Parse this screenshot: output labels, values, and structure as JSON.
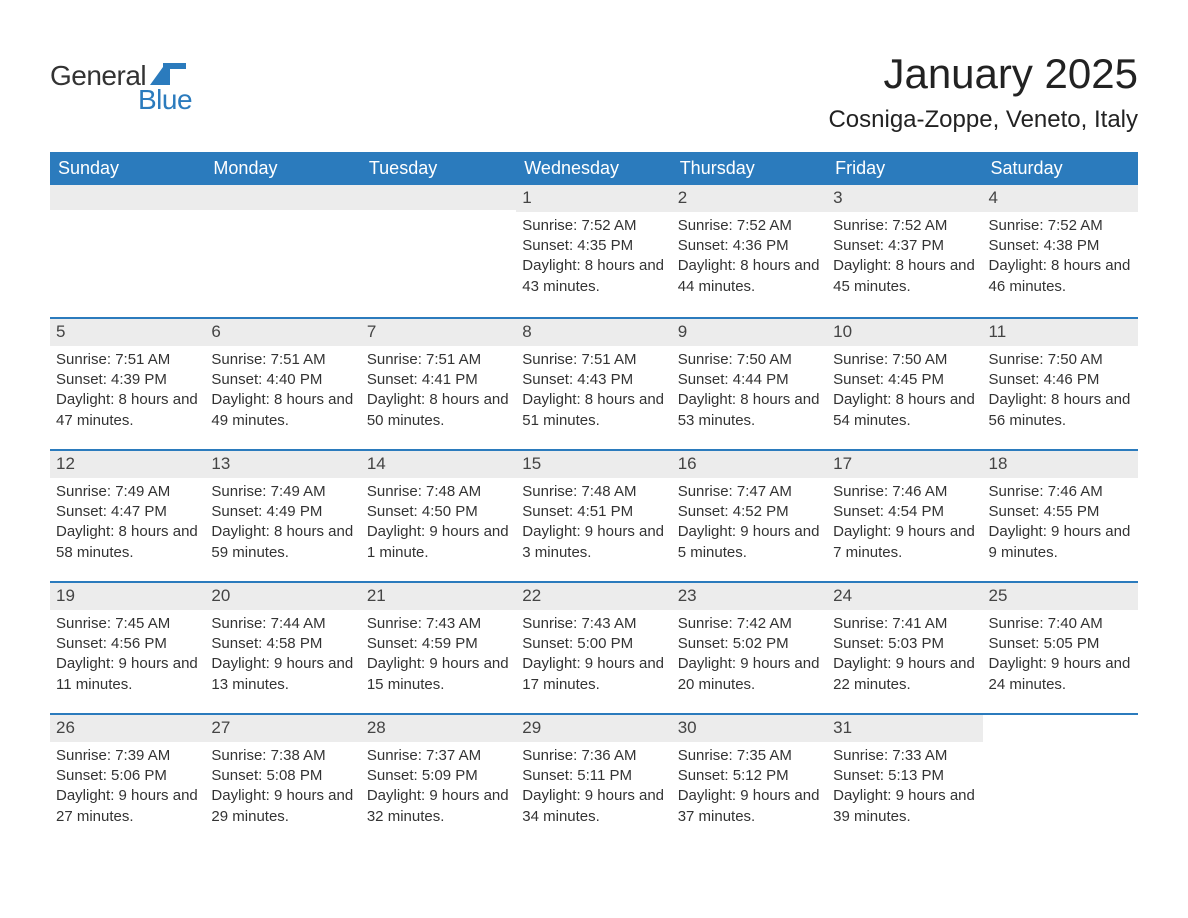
{
  "logo": {
    "text1": "General",
    "text2": "Blue",
    "icon_color": "#2b7bbd"
  },
  "title": "January 2025",
  "location": "Cosniga-Zoppe, Veneto, Italy",
  "colors": {
    "header_bg": "#2b7bbd",
    "header_text": "#ffffff",
    "daynum_bg": "#ececec",
    "text": "#333333",
    "border": "#2b7bbd",
    "page_bg": "#ffffff"
  },
  "fonts": {
    "title_size_pt": 32,
    "location_size_pt": 18,
    "weekday_size_pt": 14,
    "body_size_pt": 11
  },
  "weekdays": [
    "Sunday",
    "Monday",
    "Tuesday",
    "Wednesday",
    "Thursday",
    "Friday",
    "Saturday"
  ],
  "weeks": [
    [
      null,
      null,
      null,
      {
        "num": "1",
        "sunrise": "Sunrise: 7:52 AM",
        "sunset": "Sunset: 4:35 PM",
        "daylight": "Daylight: 8 hours and 43 minutes."
      },
      {
        "num": "2",
        "sunrise": "Sunrise: 7:52 AM",
        "sunset": "Sunset: 4:36 PM",
        "daylight": "Daylight: 8 hours and 44 minutes."
      },
      {
        "num": "3",
        "sunrise": "Sunrise: 7:52 AM",
        "sunset": "Sunset: 4:37 PM",
        "daylight": "Daylight: 8 hours and 45 minutes."
      },
      {
        "num": "4",
        "sunrise": "Sunrise: 7:52 AM",
        "sunset": "Sunset: 4:38 PM",
        "daylight": "Daylight: 8 hours and 46 minutes."
      }
    ],
    [
      {
        "num": "5",
        "sunrise": "Sunrise: 7:51 AM",
        "sunset": "Sunset: 4:39 PM",
        "daylight": "Daylight: 8 hours and 47 minutes."
      },
      {
        "num": "6",
        "sunrise": "Sunrise: 7:51 AM",
        "sunset": "Sunset: 4:40 PM",
        "daylight": "Daylight: 8 hours and 49 minutes."
      },
      {
        "num": "7",
        "sunrise": "Sunrise: 7:51 AM",
        "sunset": "Sunset: 4:41 PM",
        "daylight": "Daylight: 8 hours and 50 minutes."
      },
      {
        "num": "8",
        "sunrise": "Sunrise: 7:51 AM",
        "sunset": "Sunset: 4:43 PM",
        "daylight": "Daylight: 8 hours and 51 minutes."
      },
      {
        "num": "9",
        "sunrise": "Sunrise: 7:50 AM",
        "sunset": "Sunset: 4:44 PM",
        "daylight": "Daylight: 8 hours and 53 minutes."
      },
      {
        "num": "10",
        "sunrise": "Sunrise: 7:50 AM",
        "sunset": "Sunset: 4:45 PM",
        "daylight": "Daylight: 8 hours and 54 minutes."
      },
      {
        "num": "11",
        "sunrise": "Sunrise: 7:50 AM",
        "sunset": "Sunset: 4:46 PM",
        "daylight": "Daylight: 8 hours and 56 minutes."
      }
    ],
    [
      {
        "num": "12",
        "sunrise": "Sunrise: 7:49 AM",
        "sunset": "Sunset: 4:47 PM",
        "daylight": "Daylight: 8 hours and 58 minutes."
      },
      {
        "num": "13",
        "sunrise": "Sunrise: 7:49 AM",
        "sunset": "Sunset: 4:49 PM",
        "daylight": "Daylight: 8 hours and 59 minutes."
      },
      {
        "num": "14",
        "sunrise": "Sunrise: 7:48 AM",
        "sunset": "Sunset: 4:50 PM",
        "daylight": "Daylight: 9 hours and 1 minute."
      },
      {
        "num": "15",
        "sunrise": "Sunrise: 7:48 AM",
        "sunset": "Sunset: 4:51 PM",
        "daylight": "Daylight: 9 hours and 3 minutes."
      },
      {
        "num": "16",
        "sunrise": "Sunrise: 7:47 AM",
        "sunset": "Sunset: 4:52 PM",
        "daylight": "Daylight: 9 hours and 5 minutes."
      },
      {
        "num": "17",
        "sunrise": "Sunrise: 7:46 AM",
        "sunset": "Sunset: 4:54 PM",
        "daylight": "Daylight: 9 hours and 7 minutes."
      },
      {
        "num": "18",
        "sunrise": "Sunrise: 7:46 AM",
        "sunset": "Sunset: 4:55 PM",
        "daylight": "Daylight: 9 hours and 9 minutes."
      }
    ],
    [
      {
        "num": "19",
        "sunrise": "Sunrise: 7:45 AM",
        "sunset": "Sunset: 4:56 PM",
        "daylight": "Daylight: 9 hours and 11 minutes."
      },
      {
        "num": "20",
        "sunrise": "Sunrise: 7:44 AM",
        "sunset": "Sunset: 4:58 PM",
        "daylight": "Daylight: 9 hours and 13 minutes."
      },
      {
        "num": "21",
        "sunrise": "Sunrise: 7:43 AM",
        "sunset": "Sunset: 4:59 PM",
        "daylight": "Daylight: 9 hours and 15 minutes."
      },
      {
        "num": "22",
        "sunrise": "Sunrise: 7:43 AM",
        "sunset": "Sunset: 5:00 PM",
        "daylight": "Daylight: 9 hours and 17 minutes."
      },
      {
        "num": "23",
        "sunrise": "Sunrise: 7:42 AM",
        "sunset": "Sunset: 5:02 PM",
        "daylight": "Daylight: 9 hours and 20 minutes."
      },
      {
        "num": "24",
        "sunrise": "Sunrise: 7:41 AM",
        "sunset": "Sunset: 5:03 PM",
        "daylight": "Daylight: 9 hours and 22 minutes."
      },
      {
        "num": "25",
        "sunrise": "Sunrise: 7:40 AM",
        "sunset": "Sunset: 5:05 PM",
        "daylight": "Daylight: 9 hours and 24 minutes."
      }
    ],
    [
      {
        "num": "26",
        "sunrise": "Sunrise: 7:39 AM",
        "sunset": "Sunset: 5:06 PM",
        "daylight": "Daylight: 9 hours and 27 minutes."
      },
      {
        "num": "27",
        "sunrise": "Sunrise: 7:38 AM",
        "sunset": "Sunset: 5:08 PM",
        "daylight": "Daylight: 9 hours and 29 minutes."
      },
      {
        "num": "28",
        "sunrise": "Sunrise: 7:37 AM",
        "sunset": "Sunset: 5:09 PM",
        "daylight": "Daylight: 9 hours and 32 minutes."
      },
      {
        "num": "29",
        "sunrise": "Sunrise: 7:36 AM",
        "sunset": "Sunset: 5:11 PM",
        "daylight": "Daylight: 9 hours and 34 minutes."
      },
      {
        "num": "30",
        "sunrise": "Sunrise: 7:35 AM",
        "sunset": "Sunset: 5:12 PM",
        "daylight": "Daylight: 9 hours and 37 minutes."
      },
      {
        "num": "31",
        "sunrise": "Sunrise: 7:33 AM",
        "sunset": "Sunset: 5:13 PM",
        "daylight": "Daylight: 9 hours and 39 minutes."
      },
      null
    ]
  ]
}
